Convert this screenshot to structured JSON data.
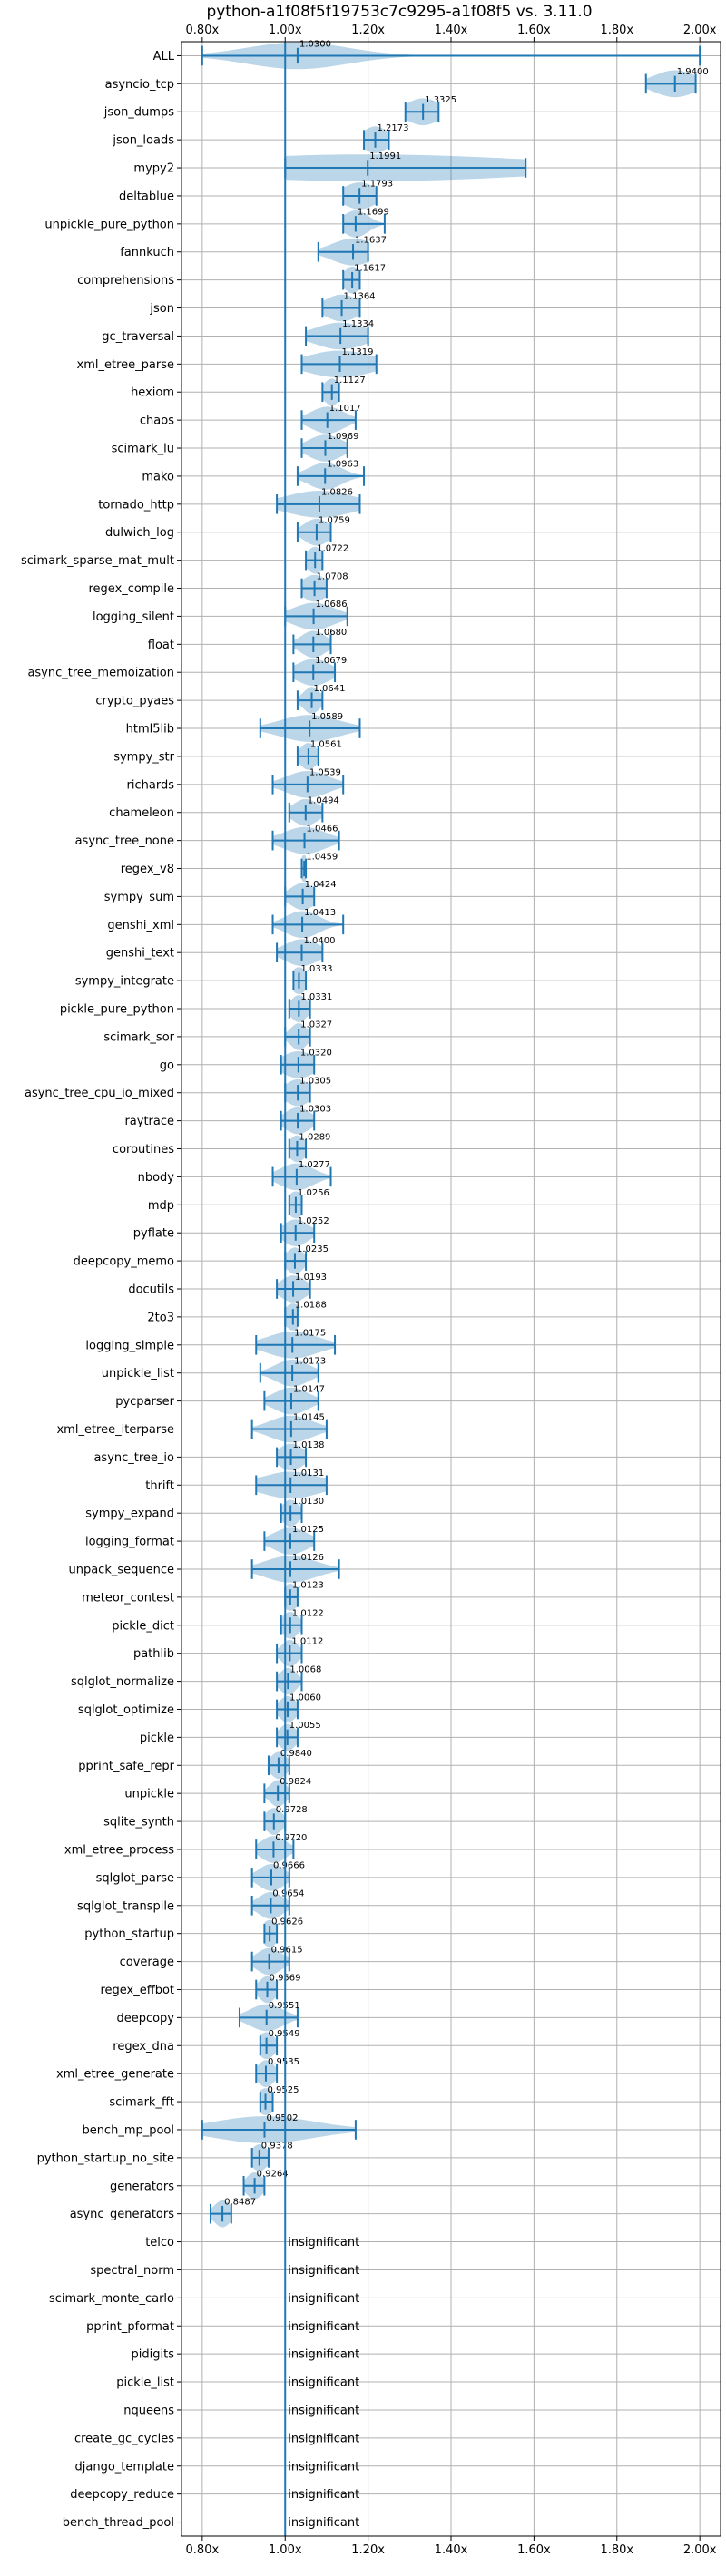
{
  "chart_data": {
    "type": "violin",
    "title": "python-a1f08f5f19753c7c9295-a1f08f5 vs. 3.11.0",
    "xlim": [
      0.75,
      2.05
    ],
    "xticks": [
      {
        "value": 0.8,
        "label": "0.80x"
      },
      {
        "value": 1.0,
        "label": "1.00x"
      },
      {
        "value": 1.2,
        "label": "1.20x"
      },
      {
        "value": 1.4,
        "label": "1.40x"
      },
      {
        "value": 1.6,
        "label": "1.60x"
      },
      {
        "value": 1.8,
        "label": "1.80x"
      },
      {
        "value": 2.0,
        "label": "2.00x"
      }
    ],
    "reference_line": 1.0,
    "grid": true,
    "insignificant_label": "insignificant",
    "benchmarks": [
      {
        "name": "ALL",
        "value": 1.03,
        "label": "1.0300",
        "min": 0.8,
        "max": 2.0,
        "spread": 0.12
      },
      {
        "name": "asyncio_tcp",
        "value": 1.94,
        "label": "1.9400",
        "min": 1.87,
        "max": 1.99,
        "spread": 0.05
      },
      {
        "name": "json_dumps",
        "value": 1.3325,
        "label": "1.3325",
        "min": 1.29,
        "max": 1.37,
        "spread": 0.04
      },
      {
        "name": "json_loads",
        "value": 1.2173,
        "label": "1.2173",
        "min": 1.19,
        "max": 1.25,
        "spread": 0.03
      },
      {
        "name": "mypy2",
        "value": 1.1991,
        "label": "1.1991",
        "min": 1.0,
        "max": 1.58,
        "spread": 0.4
      },
      {
        "name": "deltablue",
        "value": 1.1793,
        "label": "1.1793",
        "min": 1.14,
        "max": 1.22,
        "spread": 0.04
      },
      {
        "name": "unpickle_pure_python",
        "value": 1.1699,
        "label": "1.1699",
        "min": 1.14,
        "max": 1.24,
        "spread": 0.03
      },
      {
        "name": "fannkuch",
        "value": 1.1637,
        "label": "1.1637",
        "min": 1.08,
        "max": 1.2,
        "spread": 0.05
      },
      {
        "name": "comprehensions",
        "value": 1.1617,
        "label": "1.1617",
        "min": 1.14,
        "max": 1.18,
        "spread": 0.02
      },
      {
        "name": "json",
        "value": 1.1364,
        "label": "1.1364",
        "min": 1.09,
        "max": 1.18,
        "spread": 0.04
      },
      {
        "name": "gc_traversal",
        "value": 1.1334,
        "label": "1.1334",
        "min": 1.05,
        "max": 1.2,
        "spread": 0.06
      },
      {
        "name": "xml_etree_parse",
        "value": 1.1319,
        "label": "1.1319",
        "min": 1.04,
        "max": 1.22,
        "spread": 0.08
      },
      {
        "name": "hexiom",
        "value": 1.1127,
        "label": "1.1127",
        "min": 1.09,
        "max": 1.13,
        "spread": 0.02
      },
      {
        "name": "chaos",
        "value": 1.1017,
        "label": "1.1017",
        "min": 1.04,
        "max": 1.17,
        "spread": 0.04
      },
      {
        "name": "scimark_lu",
        "value": 1.0969,
        "label": "1.0969",
        "min": 1.04,
        "max": 1.15,
        "spread": 0.04
      },
      {
        "name": "mako",
        "value": 1.0963,
        "label": "1.0963",
        "min": 1.03,
        "max": 1.19,
        "spread": 0.04
      },
      {
        "name": "tornado_http",
        "value": 1.0826,
        "label": "1.0826",
        "min": 0.98,
        "max": 1.18,
        "spread": 0.08
      },
      {
        "name": "dulwich_log",
        "value": 1.0759,
        "label": "1.0759",
        "min": 1.03,
        "max": 1.11,
        "spread": 0.03
      },
      {
        "name": "scimark_sparse_mat_mult",
        "value": 1.0722,
        "label": "1.0722",
        "min": 1.05,
        "max": 1.09,
        "spread": 0.02
      },
      {
        "name": "regex_compile",
        "value": 1.0708,
        "label": "1.0708",
        "min": 1.04,
        "max": 1.1,
        "spread": 0.03
      },
      {
        "name": "logging_silent",
        "value": 1.0686,
        "label": "1.0686",
        "min": 1.0,
        "max": 1.15,
        "spread": 0.05
      },
      {
        "name": "float",
        "value": 1.068,
        "label": "1.0680",
        "min": 1.02,
        "max": 1.11,
        "spread": 0.03
      },
      {
        "name": "async_tree_memoization",
        "value": 1.0679,
        "label": "1.0679",
        "min": 1.02,
        "max": 1.12,
        "spread": 0.04
      },
      {
        "name": "crypto_pyaes",
        "value": 1.0641,
        "label": "1.0641",
        "min": 1.03,
        "max": 1.09,
        "spread": 0.02
      },
      {
        "name": "html5lib",
        "value": 1.0589,
        "label": "1.0589",
        "min": 0.94,
        "max": 1.18,
        "spread": 0.07
      },
      {
        "name": "sympy_str",
        "value": 1.0561,
        "label": "1.0561",
        "min": 1.03,
        "max": 1.08,
        "spread": 0.02
      },
      {
        "name": "richards",
        "value": 1.0539,
        "label": "1.0539",
        "min": 0.97,
        "max": 1.14,
        "spread": 0.05
      },
      {
        "name": "chameleon",
        "value": 1.0494,
        "label": "1.0494",
        "min": 1.01,
        "max": 1.09,
        "spread": 0.03
      },
      {
        "name": "async_tree_none",
        "value": 1.0466,
        "label": "1.0466",
        "min": 0.97,
        "max": 1.13,
        "spread": 0.05
      },
      {
        "name": "regex_v8",
        "value": 1.0459,
        "label": "1.0459",
        "min": 1.04,
        "max": 1.05,
        "spread": 0.01
      },
      {
        "name": "sympy_sum",
        "value": 1.0424,
        "label": "1.0424",
        "min": 1.0,
        "max": 1.07,
        "spread": 0.03
      },
      {
        "name": "genshi_xml",
        "value": 1.0413,
        "label": "1.0413",
        "min": 0.97,
        "max": 1.14,
        "spread": 0.04
      },
      {
        "name": "genshi_text",
        "value": 1.04,
        "label": "1.0400",
        "min": 0.98,
        "max": 1.09,
        "spread": 0.04
      },
      {
        "name": "sympy_integrate",
        "value": 1.0333,
        "label": "1.0333",
        "min": 1.02,
        "max": 1.05,
        "spread": 0.02
      },
      {
        "name": "pickle_pure_python",
        "value": 1.0331,
        "label": "1.0331",
        "min": 1.01,
        "max": 1.06,
        "spread": 0.02
      },
      {
        "name": "scimark_sor",
        "value": 1.0327,
        "label": "1.0327",
        "min": 1.0,
        "max": 1.06,
        "spread": 0.02
      },
      {
        "name": "go",
        "value": 1.032,
        "label": "1.0320",
        "min": 0.99,
        "max": 1.07,
        "spread": 0.04
      },
      {
        "name": "async_tree_cpu_io_mixed",
        "value": 1.0305,
        "label": "1.0305",
        "min": 1.0,
        "max": 1.06,
        "spread": 0.03
      },
      {
        "name": "raytrace",
        "value": 1.0303,
        "label": "1.0303",
        "min": 0.99,
        "max": 1.07,
        "spread": 0.03
      },
      {
        "name": "coroutines",
        "value": 1.0289,
        "label": "1.0289",
        "min": 1.01,
        "max": 1.05,
        "spread": 0.02
      },
      {
        "name": "nbody",
        "value": 1.0277,
        "label": "1.0277",
        "min": 0.97,
        "max": 1.11,
        "spread": 0.04
      },
      {
        "name": "mdp",
        "value": 1.0256,
        "label": "1.0256",
        "min": 1.01,
        "max": 1.04,
        "spread": 0.02
      },
      {
        "name": "pyflate",
        "value": 1.0252,
        "label": "1.0252",
        "min": 0.99,
        "max": 1.07,
        "spread": 0.03
      },
      {
        "name": "deepcopy_memo",
        "value": 1.0235,
        "label": "1.0235",
        "min": 1.0,
        "max": 1.05,
        "spread": 0.02
      },
      {
        "name": "docutils",
        "value": 1.0193,
        "label": "1.0193",
        "min": 0.98,
        "max": 1.06,
        "spread": 0.03
      },
      {
        "name": "2to3",
        "value": 1.0188,
        "label": "1.0188",
        "min": 1.0,
        "max": 1.03,
        "spread": 0.02
      },
      {
        "name": "logging_simple",
        "value": 1.0175,
        "label": "1.0175",
        "min": 0.93,
        "max": 1.12,
        "spread": 0.06
      },
      {
        "name": "unpickle_list",
        "value": 1.0173,
        "label": "1.0173",
        "min": 0.94,
        "max": 1.08,
        "spread": 0.04
      },
      {
        "name": "pycparser",
        "value": 1.0147,
        "label": "1.0147",
        "min": 0.95,
        "max": 1.08,
        "spread": 0.04
      },
      {
        "name": "xml_etree_iterparse",
        "value": 1.0145,
        "label": "1.0145",
        "min": 0.92,
        "max": 1.1,
        "spread": 0.05
      },
      {
        "name": "async_tree_io",
        "value": 1.0138,
        "label": "1.0138",
        "min": 0.98,
        "max": 1.05,
        "spread": 0.03
      },
      {
        "name": "thrift",
        "value": 1.0131,
        "label": "1.0131",
        "min": 0.93,
        "max": 1.1,
        "spread": 0.07
      },
      {
        "name": "sympy_expand",
        "value": 1.013,
        "label": "1.0130",
        "min": 0.99,
        "max": 1.04,
        "spread": 0.02
      },
      {
        "name": "logging_format",
        "value": 1.0125,
        "label": "1.0125",
        "min": 0.95,
        "max": 1.07,
        "spread": 0.04
      },
      {
        "name": "unpack_sequence",
        "value": 1.0126,
        "label": "1.0126",
        "min": 0.92,
        "max": 1.13,
        "spread": 0.06
      },
      {
        "name": "meteor_contest",
        "value": 1.0123,
        "label": "1.0123",
        "min": 1.0,
        "max": 1.03,
        "spread": 0.02
      },
      {
        "name": "pickle_dict",
        "value": 1.0122,
        "label": "1.0122",
        "min": 0.99,
        "max": 1.04,
        "spread": 0.02
      },
      {
        "name": "pathlib",
        "value": 1.0112,
        "label": "1.0112",
        "min": 0.98,
        "max": 1.04,
        "spread": 0.02
      },
      {
        "name": "sqlglot_normalize",
        "value": 1.0068,
        "label": "1.0068",
        "min": 0.98,
        "max": 1.04,
        "spread": 0.02
      },
      {
        "name": "sqlglot_optimize",
        "value": 1.006,
        "label": "1.0060",
        "min": 0.98,
        "max": 1.03,
        "spread": 0.02
      },
      {
        "name": "pickle",
        "value": 1.0055,
        "label": "1.0055",
        "min": 0.98,
        "max": 1.03,
        "spread": 0.02
      },
      {
        "name": "pprint_safe_repr",
        "value": 0.984,
        "label": "0.9840",
        "min": 0.96,
        "max": 1.01,
        "spread": 0.02
      },
      {
        "name": "unpickle",
        "value": 0.9824,
        "label": "0.9824",
        "min": 0.95,
        "max": 1.01,
        "spread": 0.02
      },
      {
        "name": "sqlite_synth",
        "value": 0.9728,
        "label": "0.9728",
        "min": 0.95,
        "max": 1.0,
        "spread": 0.02
      },
      {
        "name": "xml_etree_process",
        "value": 0.972,
        "label": "0.9720",
        "min": 0.93,
        "max": 1.02,
        "spread": 0.03
      },
      {
        "name": "sqlglot_parse",
        "value": 0.9666,
        "label": "0.9666",
        "min": 0.92,
        "max": 1.01,
        "spread": 0.03
      },
      {
        "name": "sqlglot_transpile",
        "value": 0.9654,
        "label": "0.9654",
        "min": 0.92,
        "max": 1.01,
        "spread": 0.03
      },
      {
        "name": "python_startup",
        "value": 0.9626,
        "label": "0.9626",
        "min": 0.95,
        "max": 0.98,
        "spread": 0.02
      },
      {
        "name": "coverage",
        "value": 0.9615,
        "label": "0.9615",
        "min": 0.92,
        "max": 1.01,
        "spread": 0.03
      },
      {
        "name": "regex_effbot",
        "value": 0.9569,
        "label": "0.9569",
        "min": 0.93,
        "max": 0.98,
        "spread": 0.02
      },
      {
        "name": "deepcopy",
        "value": 0.9551,
        "label": "0.9551",
        "min": 0.89,
        "max": 1.03,
        "spread": 0.04
      },
      {
        "name": "regex_dna",
        "value": 0.9549,
        "label": "0.9549",
        "min": 0.94,
        "max": 0.98,
        "spread": 0.02
      },
      {
        "name": "xml_etree_generate",
        "value": 0.9535,
        "label": "0.9535",
        "min": 0.93,
        "max": 0.98,
        "spread": 0.02
      },
      {
        "name": "scimark_fft",
        "value": 0.9525,
        "label": "0.9525",
        "min": 0.94,
        "max": 0.97,
        "spread": 0.02
      },
      {
        "name": "bench_mp_pool",
        "value": 0.9502,
        "label": "0.9502",
        "min": 0.8,
        "max": 1.17,
        "spread": 0.12
      },
      {
        "name": "python_startup_no_site",
        "value": 0.9378,
        "label": "0.9378",
        "min": 0.92,
        "max": 0.96,
        "spread": 0.02
      },
      {
        "name": "generators",
        "value": 0.9264,
        "label": "0.9264",
        "min": 0.9,
        "max": 0.95,
        "spread": 0.02
      },
      {
        "name": "async_generators",
        "value": 0.8487,
        "label": "0.8487",
        "min": 0.82,
        "max": 0.87,
        "spread": 0.02
      },
      {
        "name": "telco",
        "insignificant": true
      },
      {
        "name": "spectral_norm",
        "insignificant": true
      },
      {
        "name": "scimark_monte_carlo",
        "insignificant": true
      },
      {
        "name": "pprint_pformat",
        "insignificant": true
      },
      {
        "name": "pidigits",
        "insignificant": true
      },
      {
        "name": "pickle_list",
        "insignificant": true
      },
      {
        "name": "nqueens",
        "insignificant": true
      },
      {
        "name": "create_gc_cycles",
        "insignificant": true
      },
      {
        "name": "django_template",
        "insignificant": true
      },
      {
        "name": "deepcopy_reduce",
        "insignificant": true
      },
      {
        "name": "bench_thread_pool",
        "insignificant": true
      }
    ]
  }
}
